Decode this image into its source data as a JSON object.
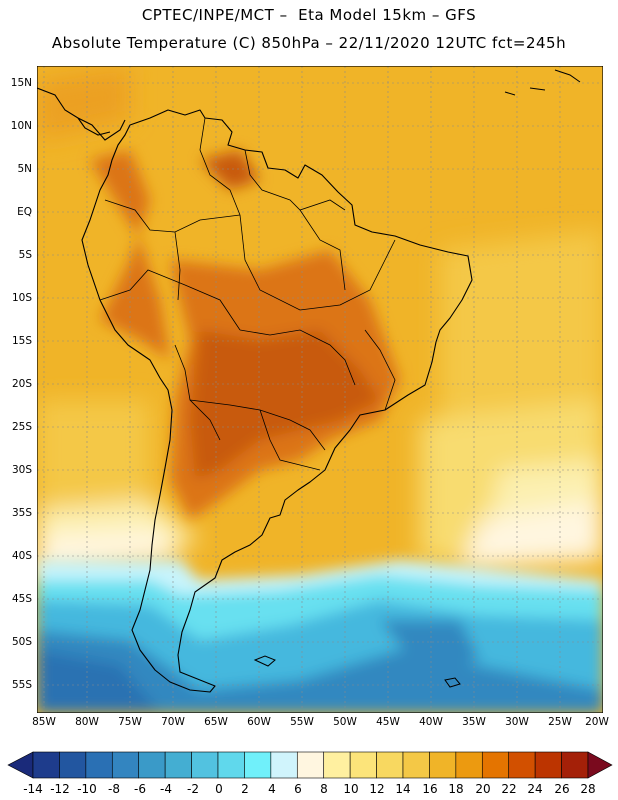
{
  "title": {
    "line1": "CPTEC/INPE/MCT –  Eta Model 15km – GFS",
    "line2": "Absolute Temperature (C) 850hPa – 22/11/2020 12UTC fct=245h"
  },
  "lat_labels": [
    "15N",
    "10N",
    "5N",
    "EQ",
    "5S",
    "10S",
    "15S",
    "20S",
    "25S",
    "30S",
    "35S",
    "40S",
    "45S",
    "50S",
    "55S"
  ],
  "lon_labels": [
    "85W",
    "80W",
    "75W",
    "70W",
    "65W",
    "60W",
    "55W",
    "50W",
    "45W",
    "40W",
    "35W",
    "30W",
    "25W",
    "20W"
  ],
  "colorbar": {
    "values": [
      "-14",
      "-12",
      "-10",
      "-8",
      "-6",
      "-4",
      "-2",
      "0",
      "2",
      "4",
      "6",
      "8",
      "10",
      "12",
      "14",
      "16",
      "18",
      "20",
      "22",
      "24",
      "26",
      "28"
    ],
    "colors": [
      "#1e3c8c",
      "#2256a0",
      "#2a70b4",
      "#3385c0",
      "#3a9ac8",
      "#44aed2",
      "#52c2e0",
      "#60d8ec",
      "#70f0fa",
      "#d0f4fc",
      "#fff6e0",
      "#fff0a0",
      "#fce47a",
      "#f8d860",
      "#f4c846",
      "#f0b428",
      "#ec9a10",
      "#e47400",
      "#d25000",
      "#bc3400",
      "#a42008",
      "#8c1408"
    ],
    "under_color": "#1a2a7a",
    "over_color": "#7a0a1e"
  },
  "field_colors": {
    "t_8": "#fff6e0",
    "t_10": "#fcf0b0",
    "t_14": "#f8dc70",
    "t_16": "#f4c846",
    "t_18": "#f0b428",
    "t_20": "#eca020",
    "t_22": "#dc7418",
    "t_24": "#c85a10",
    "t_4": "#c8f4fc",
    "t_0": "#68e0f0",
    "t_m4": "#44b8de",
    "t_m8": "#3088c0",
    "t_m10": "#2a72b2"
  }
}
